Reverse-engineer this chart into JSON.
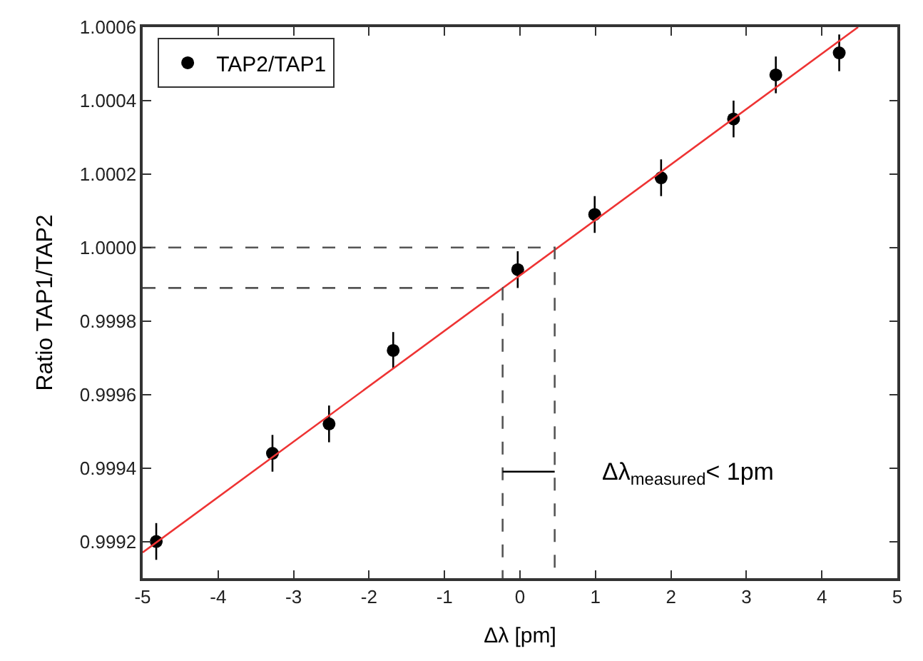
{
  "chart_data": {
    "type": "scatter",
    "xlabel": "Δλ [pm]",
    "ylabel": "Ratio TAP1/TAP2",
    "xlim": [
      -5,
      5
    ],
    "xticks": [
      -5,
      -4,
      -3,
      -2,
      -1,
      0,
      1,
      2,
      3,
      4,
      5
    ],
    "ylim": [
      0.9991,
      1.0006
    ],
    "yticks": [
      0.9992,
      0.9994,
      0.9996,
      0.9998,
      {
        "value": 1.0,
        "label": "1.0000"
      },
      1.0002,
      1.0004,
      1.0006
    ],
    "legend": "top left",
    "series": [
      {
        "name": "TAP2/TAP1",
        "marker": "circle",
        "color": "#000000",
        "x": [
          -4.82,
          -3.28,
          -2.53,
          -1.68,
          -0.03,
          0.99,
          1.87,
          2.83,
          3.39,
          4.23
        ],
        "values": [
          0.9992,
          0.99944,
          0.99952,
          0.99972,
          0.99994,
          1.00009,
          1.00019,
          1.00035,
          1.00047,
          1.00053
        ],
        "errors": [
          5e-05,
          5e-05,
          5e-05,
          5e-05,
          5e-05,
          5e-05,
          5e-05,
          5e-05,
          5e-05,
          5e-05
        ]
      },
      {
        "type": "line",
        "color": "#ee3333",
        "line_style": "solid",
        "marker": "none",
        "x": [
          -5,
          4.48
        ],
        "values": [
          0.99917,
          1.0006
        ]
      },
      {
        "type": "line",
        "color": "#555555",
        "line_style": "dashed",
        "marker": "none",
        "x": [
          -5,
          0.46,
          0.46
        ],
        "values": [
          1.0,
          1.0,
          0.9991
        ]
      },
      {
        "type": "line",
        "color": "#555555",
        "line_style": "dashed",
        "marker": "none",
        "x": [
          -5,
          -0.23,
          -0.23
        ],
        "values": [
          0.99989,
          0.99989,
          0.9991
        ]
      },
      {
        "type": "line",
        "color": "#000000",
        "line_style": "solid",
        "marker": "none",
        "x": [
          -0.23,
          0.46
        ],
        "values": [
          0.99939,
          0.99939
        ]
      }
    ],
    "annotations": [
      "Δλ$_{measured}$< 1pm"
    ]
  }
}
